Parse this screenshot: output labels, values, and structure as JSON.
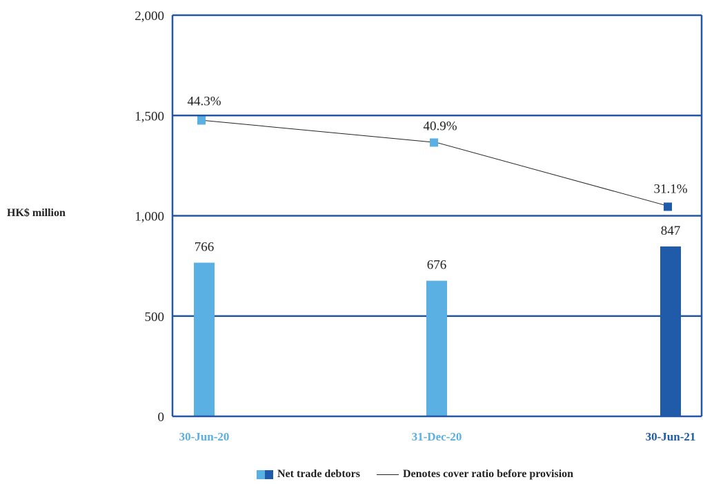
{
  "chart_data": {
    "type": "bar",
    "categories": [
      "30-Jun-20",
      "31-Dec-20",
      "30-Jun-21"
    ],
    "ylabel": "HK$ million",
    "ylim": [
      0,
      2000
    ],
    "yticks": [
      0,
      500,
      1000,
      1500,
      2000
    ],
    "ytick_labels": [
      "0",
      "500",
      "1,000",
      "1,500",
      "2,000"
    ],
    "grid": true,
    "legend_placement": "bottom",
    "series": [
      {
        "name": "Net trade debtors",
        "type": "bar",
        "values": [
          766,
          676,
          847
        ],
        "labels": [
          "766",
          "676",
          "847"
        ]
      },
      {
        "name": "Denotes cover ratio before provision",
        "type": "line",
        "values": [
          1475,
          1365,
          1045
        ],
        "labels": [
          "44.3%",
          "40.9%",
          "31.1%"
        ]
      }
    ],
    "colors": {
      "prior_period": "#5aafe3",
      "current_period": "#1f5ba8",
      "axis": "#2457a3",
      "line": "#222222"
    }
  }
}
